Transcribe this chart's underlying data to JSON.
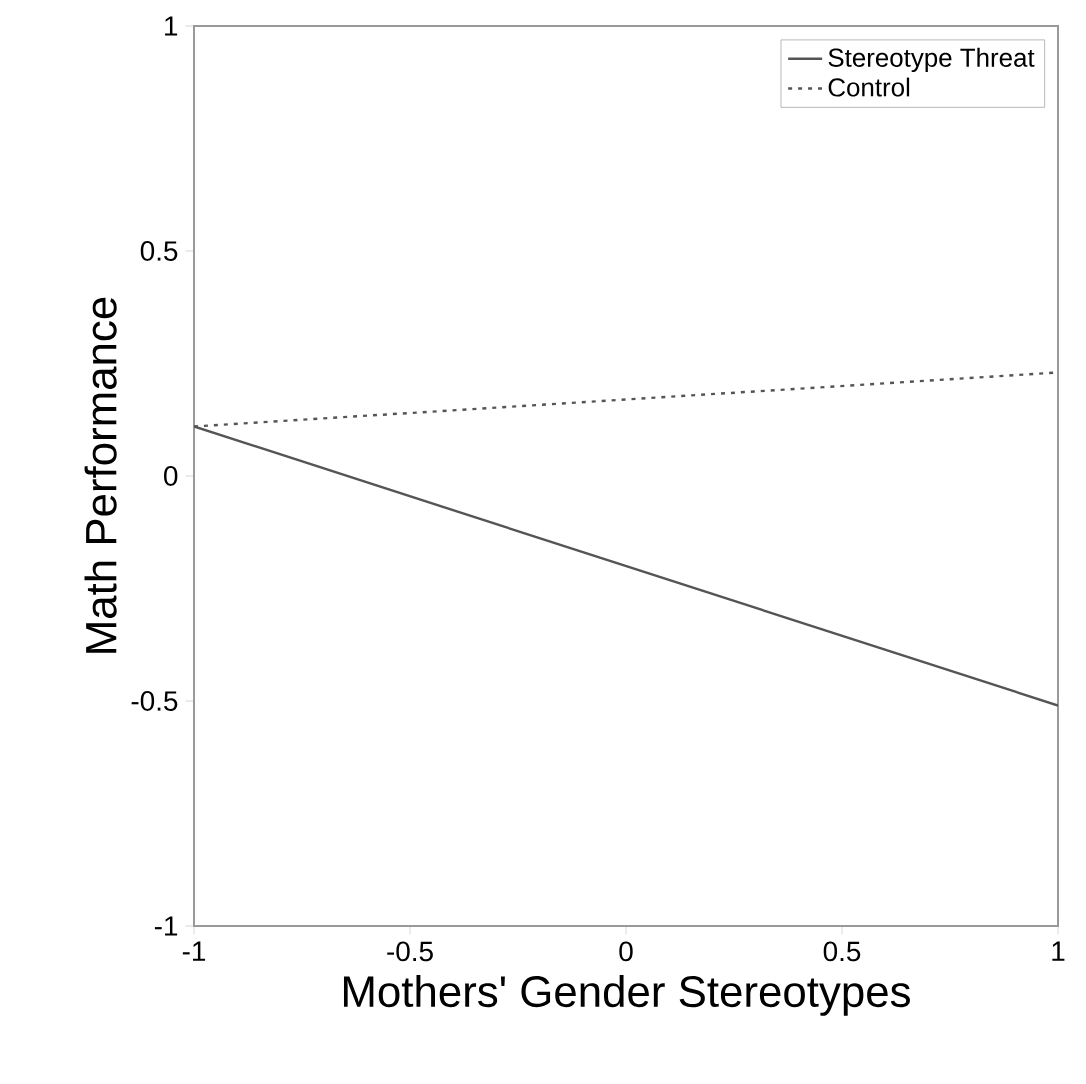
{
  "chart_data": {
    "type": "line",
    "xlabel": "Mothers' Gender Stereotypes",
    "ylabel": "Math Performance",
    "x": [
      -1,
      1
    ],
    "series": [
      {
        "name": "Stereotype Threat",
        "color": "#555555",
        "line_style": "solid",
        "values": [
          0.11,
          -0.51
        ]
      },
      {
        "name": "Control",
        "color": "#555555",
        "line_style": "dotted",
        "values": [
          0.11,
          0.23
        ]
      }
    ],
    "xlim": [
      -1,
      1
    ],
    "ylim": [
      -1,
      1
    ],
    "xticks": [
      -1,
      -0.5,
      0,
      0.5,
      1
    ],
    "yticks": [
      -1,
      -0.5,
      0,
      0.5,
      1
    ],
    "grid": false,
    "legend": "top right",
    "marker": "none"
  }
}
